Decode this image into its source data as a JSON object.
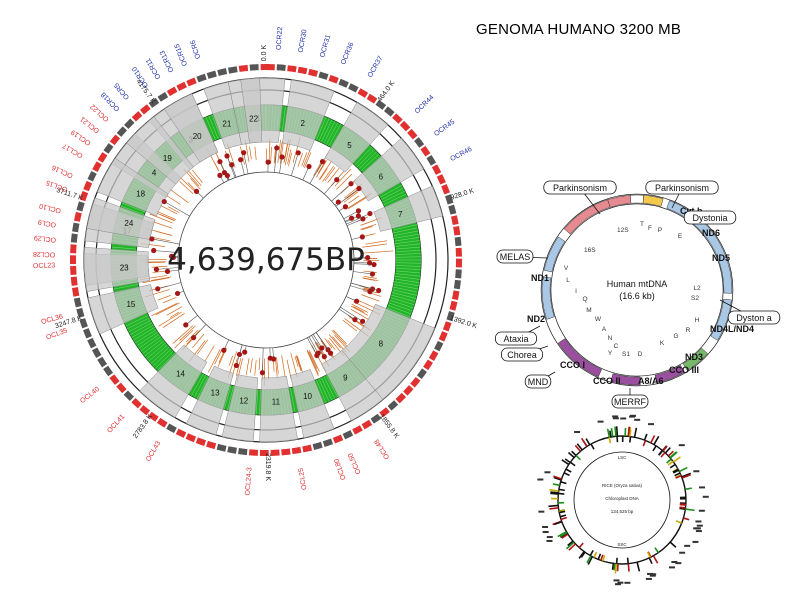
{
  "title": "GENOMA HUMANO 3200 MB",
  "bacterial": {
    "center_label": "4,639,675BP",
    "scale_labels": [
      "0.0 K",
      "464.0 K",
      "928.0 K",
      "1392.0 K",
      "1855.8 K",
      "2319.8 K",
      "2783.8 K",
      "3247.8 K",
      "3711.7 K",
      "4175.7 K"
    ],
    "blue_oc_labels": [
      "OCR22",
      "OCR30",
      "OCR31",
      "OCR36",
      "OCR37",
      "OCR44",
      "OCR45",
      "OCR46",
      "OCR10",
      "OCR11",
      "OCR13",
      "OCR15",
      "OCR18",
      "OCR5",
      "OCR6"
    ],
    "red_oc_labels": [
      "OCL9",
      "OCL10",
      "OCL15",
      "OCL16",
      "OCL17",
      "OCL19",
      "OCL21",
      "OCL22",
      "OCL23",
      "OCL28",
      "OCL29",
      "OCL35",
      "OCL36",
      "OCL40",
      "OCL41",
      "OCL43",
      "OCL24-3",
      "OCL25",
      "OCL48",
      "OCL50",
      "OCL80"
    ],
    "segment_numbers": [
      "1",
      "2",
      "3",
      "4",
      "5",
      "6",
      "7",
      "8",
      "9",
      "10",
      "11",
      "12",
      "13",
      "14",
      "15",
      "16",
      "17",
      "18",
      "19",
      "20",
      "21",
      "22",
      "23",
      "24"
    ],
    "colors": {
      "green": "#22b528",
      "grey_box": "#c8c8c8",
      "orange_ticks": "#d2691e",
      "red_dots": "#a51616",
      "blue_labels": "#2233aa",
      "red_labels": "#e03030"
    }
  },
  "mito": {
    "title": "Human mtDNA",
    "size": "(16.6 kb)",
    "genes": [
      "12S",
      "16S",
      "ND1",
      "ND2",
      "CCO I",
      "CCO II",
      "A8/A6",
      "CCO III",
      "ND3",
      "ND4L/ND4",
      "ND5",
      "ND6",
      "Cyt b"
    ],
    "small_labels": [
      "F",
      "V",
      "L",
      "I",
      "Q",
      "M",
      "W",
      "A",
      "N",
      "C",
      "Y",
      "S1",
      "D",
      "K",
      "G",
      "R",
      "H",
      "S2",
      "L2",
      "E",
      "T",
      "P"
    ],
    "diseases": [
      "Parkinsonism",
      "Parkinsonism",
      "Dystonia",
      "Dyston a",
      "MELAS",
      "Ataxia",
      "Chorea",
      "MND",
      "MERRF"
    ],
    "colors": {
      "pink": "#e58a8f",
      "light_blue": "#a9c8e6",
      "purple": "#9a4f9f",
      "yellow": "#f2c94c",
      "green": "#78b86b"
    }
  },
  "rice": {
    "lines": [
      "RICE (Oryza sativa)",
      "Chloroplast DNA",
      "134,525 bp"
    ],
    "ring_labels": [
      "LSC",
      "SSC"
    ]
  }
}
